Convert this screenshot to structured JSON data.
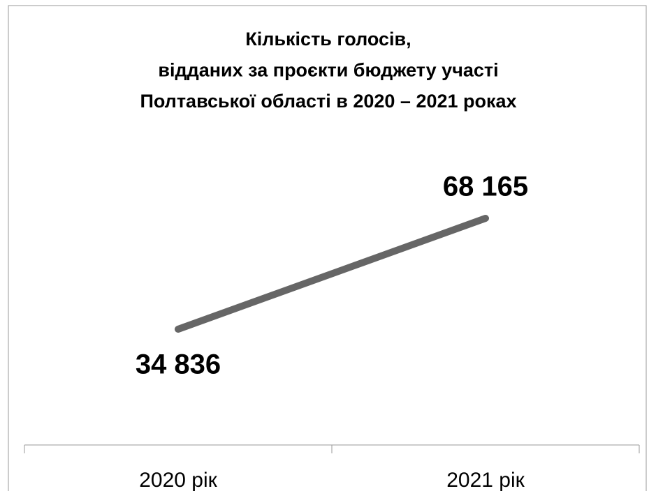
{
  "chart_data": {
    "type": "line",
    "title": [
      "Кількість голосів,",
      "відданих за проєкти бюджету участі",
      "Полтавської області в 2020 – 2021 роках"
    ],
    "categories": [
      "2020 рік",
      "2021 рік"
    ],
    "series": [
      {
        "color": "#666666",
        "values": [
          34836,
          68165
        ],
        "value_labels": [
          "34 836",
          "68 165"
        ]
      }
    ]
  }
}
